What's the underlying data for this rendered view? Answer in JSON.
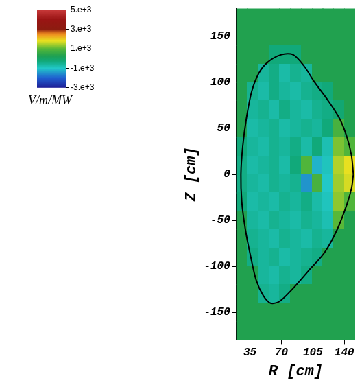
{
  "chart_data": {
    "type": "heatmap",
    "x_label": "R [cm]",
    "y_label": "Z [cm]",
    "xlim": [
      20,
      152
    ],
    "ylim": [
      -180,
      180
    ],
    "xticks": [
      35,
      70,
      105,
      140
    ],
    "yticks": [
      -150,
      -100,
      -50,
      0,
      50,
      100,
      150
    ],
    "grid": false,
    "cells": {
      "x": [
        26,
        38,
        50,
        62,
        74,
        86,
        98,
        110,
        122,
        134,
        146
      ],
      "y": [
        170,
        150,
        130,
        110,
        90,
        70,
        50,
        30,
        10,
        -10,
        -30,
        -50,
        -70,
        -90,
        -110,
        -130,
        -150,
        -170
      ],
      "values": [
        [
          300,
          300,
          300,
          300,
          300,
          300,
          300,
          300,
          300,
          300,
          300
        ],
        [
          300,
          300,
          300,
          300,
          300,
          300,
          300,
          300,
          300,
          300,
          300
        ],
        [
          300,
          300,
          300,
          -300,
          -300,
          -300,
          300,
          300,
          300,
          300,
          300
        ],
        [
          300,
          300,
          -600,
          -400,
          -700,
          -500,
          -600,
          300,
          300,
          300,
          300
        ],
        [
          300,
          -500,
          -700,
          -400,
          -600,
          -700,
          -500,
          -400,
          -300,
          300,
          300
        ],
        [
          300,
          -600,
          -500,
          -700,
          -400,
          -600,
          -700,
          -500,
          -400,
          -200,
          300
        ],
        [
          300,
          -700,
          -600,
          -500,
          -700,
          -600,
          -500,
          -600,
          -300,
          800,
          300
        ],
        [
          -300,
          -600,
          -700,
          -500,
          -600,
          -400,
          -700,
          -300,
          -800,
          1200,
          900
        ],
        [
          -400,
          -700,
          -600,
          -500,
          -700,
          -300,
          900,
          -1200,
          -900,
          1500,
          1800
        ],
        [
          -400,
          -600,
          -700,
          -500,
          -600,
          -500,
          -1500,
          800,
          -1000,
          1400,
          1700
        ],
        [
          -300,
          -700,
          -600,
          -700,
          -500,
          -600,
          -400,
          -700,
          -900,
          1300,
          900
        ],
        [
          300,
          -600,
          -700,
          -500,
          -600,
          -700,
          -500,
          -600,
          -800,
          1000,
          300
        ],
        [
          300,
          -500,
          -600,
          -700,
          -500,
          -600,
          -700,
          -500,
          -600,
          300,
          300
        ],
        [
          300,
          -400,
          -600,
          -500,
          -700,
          -600,
          -500,
          -400,
          300,
          300,
          300
        ],
        [
          300,
          300,
          -600,
          -700,
          -500,
          -600,
          -400,
          300,
          300,
          300,
          300
        ],
        [
          300,
          300,
          -500,
          -600,
          -400,
          300,
          300,
          300,
          300,
          300,
          300
        ],
        [
          300,
          300,
          300,
          300,
          300,
          300,
          300,
          300,
          300,
          300,
          300
        ],
        [
          300,
          300,
          300,
          300,
          300,
          300,
          300,
          300,
          300,
          300,
          300
        ]
      ]
    },
    "boundary": {
      "color": "#000000",
      "x": [
        150,
        148,
        143,
        135,
        122,
        107,
        95,
        83,
        70,
        55,
        45,
        37,
        31,
        27,
        25,
        26,
        30,
        36,
        42,
        50,
        58,
        68,
        82,
        100,
        118,
        132,
        142,
        148,
        150
      ],
      "y": [
        0,
        20,
        40,
        60,
        80,
        100,
        118,
        130,
        130,
        122,
        110,
        90,
        60,
        30,
        0,
        -30,
        -60,
        -90,
        -115,
        -132,
        -140,
        -138,
        -125,
        -105,
        -85,
        -60,
        -35,
        -15,
        0
      ]
    },
    "colorbar": {
      "range": [
        -3000,
        5000
      ],
      "ticks": [
        {
          "value": 5000,
          "label": "5.e+3"
        },
        {
          "value": 3000,
          "label": "3.e+3"
        },
        {
          "value": 1000,
          "label": "1.e+3"
        },
        {
          "value": -1000,
          "label": "-1.e+3"
        },
        {
          "value": -3000,
          "label": "-3.e+3"
        }
      ],
      "label": "V/m/MW"
    }
  }
}
